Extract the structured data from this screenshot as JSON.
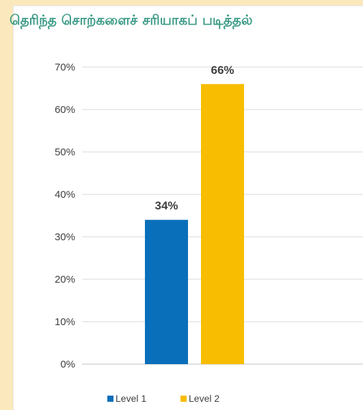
{
  "page": {
    "background_color": "#fbe9bd",
    "panel_color": "#ffffff",
    "title_color": "#3c9b87"
  },
  "chart_data": {
    "type": "bar",
    "title": "தெரிந்த சொற்களைச் சரியாகப் படித்தல்",
    "categories": [
      ""
    ],
    "series": [
      {
        "name": "Level 1",
        "values": [
          34
        ],
        "data_label": "34%",
        "color": "#0a6fba"
      },
      {
        "name": "Level 2",
        "values": [
          66
        ],
        "data_label": "66%",
        "color": "#f8bd00"
      }
    ],
    "y_unit": "percent",
    "ylim": [
      0,
      70
    ],
    "y_ticks": [
      "0%",
      "10%",
      "20%",
      "30%",
      "40%",
      "50%",
      "60%",
      "70%"
    ],
    "grid": true,
    "legend_position": "bottom",
    "xlabel": "",
    "ylabel": ""
  }
}
